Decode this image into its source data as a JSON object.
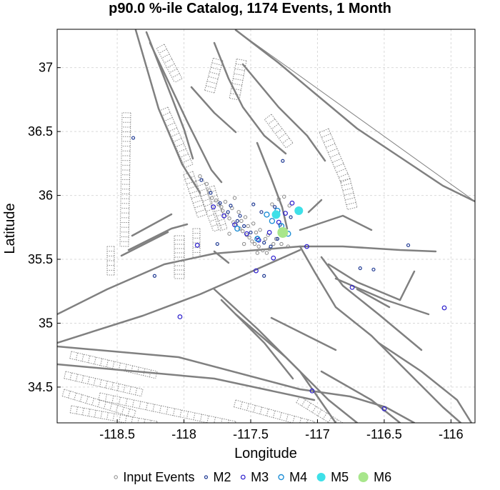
{
  "chart_data": {
    "type": "scatter",
    "title": "p90.0 %-ile Catalog, 1174 Events, 1 Month",
    "xlabel": "Longitude",
    "ylabel": "Latitude",
    "xlim": [
      -118.95,
      -115.82
    ],
    "ylim": [
      34.22,
      37.3
    ],
    "xticks": [
      -118.5,
      -118,
      -117.5,
      -117,
      -116.5,
      -116
    ],
    "xtick_labels": [
      "-118.5",
      "-118",
      "-117.5",
      "-117",
      "-116.5",
      "-116"
    ],
    "yticks": [
      34.5,
      35,
      35.5,
      36,
      36.5,
      37
    ],
    "ytick_labels": [
      "34.5",
      "35",
      "35.5",
      "36",
      "36.5",
      "37"
    ],
    "grid": true,
    "legend": {
      "placement": "bottom"
    },
    "colors": {
      "input": "#888888",
      "m2": "#1f3a93",
      "m3": "#2a1ccc",
      "m4": "#1f8fd6",
      "m5": "#3ee0e8",
      "m6": "#a8e68c",
      "fault": "#808080"
    },
    "series": [
      {
        "name": "Input Events",
        "x": [
          -117.88,
          -117.83,
          -117.79,
          -117.74,
          -117.71,
          -117.68,
          -117.66,
          -117.63,
          -117.61,
          -117.58,
          -117.56,
          -117.53,
          -117.51,
          -117.49,
          -117.47,
          -117.44,
          -117.41,
          -117.38,
          -117.36,
          -117.33,
          -117.69,
          -117.64,
          -117.59,
          -117.54,
          -117.48,
          -117.43,
          -117.37,
          -117.31,
          -117.27,
          -117.22,
          -117.81,
          -117.76,
          -117.72,
          -117.57,
          -117.52,
          -117.46,
          -117.39,
          -117.34,
          -117.29,
          -117.25,
          -117.21,
          -117.62,
          -117.66,
          -117.55,
          -117.45
        ],
        "y": [
          36.15,
          36.09,
          35.98,
          35.93,
          35.88,
          35.85,
          35.82,
          35.79,
          35.77,
          35.74,
          35.72,
          35.69,
          35.67,
          35.64,
          35.62,
          35.6,
          35.57,
          35.55,
          35.58,
          35.62,
          35.95,
          35.9,
          35.87,
          35.83,
          35.78,
          35.73,
          35.69,
          35.66,
          35.62,
          35.6,
          36.04,
          35.96,
          35.91,
          35.8,
          35.76,
          35.71,
          35.66,
          35.93,
          35.97,
          35.99,
          35.92,
          35.98,
          35.7,
          35.62,
          35.55
        ]
      },
      {
        "name": "M2",
        "x": [
          -117.87,
          -117.8,
          -117.73,
          -117.67,
          -117.6,
          -117.55,
          -117.5,
          -117.45,
          -117.4,
          -117.35,
          -117.3,
          -117.25,
          -117.2,
          -117.15,
          -117.65,
          -117.58,
          -117.48,
          -117.42,
          -117.32,
          -117.28,
          -116.68,
          -116.58,
          -116.32,
          -118.22,
          -118.38,
          -117.75,
          -117.4,
          -117.26
        ],
        "y": [
          36.12,
          36.02,
          35.94,
          35.87,
          35.8,
          35.76,
          35.71,
          35.67,
          35.63,
          35.6,
          35.66,
          35.72,
          35.83,
          35.88,
          35.92,
          35.84,
          35.93,
          35.87,
          35.91,
          35.77,
          35.43,
          35.42,
          35.61,
          35.37,
          36.45,
          35.62,
          35.37,
          36.27
        ]
      },
      {
        "name": "M3",
        "x": [
          -117.78,
          -117.7,
          -117.62,
          -117.53,
          -117.44,
          -117.36,
          -117.29,
          -117.24,
          -117.19,
          -117.33,
          -116.74,
          -116.5,
          -118.03,
          -117.04,
          -117.08,
          -116.05,
          -117.46,
          -117.9
        ],
        "y": [
          35.91,
          35.84,
          35.77,
          35.7,
          35.65,
          35.71,
          35.79,
          35.86,
          35.94,
          35.51,
          35.28,
          34.33,
          35.05,
          34.47,
          35.6,
          35.12,
          35.41,
          35.61
        ]
      },
      {
        "name": "M4",
        "x": [
          -117.6,
          -117.45,
          -117.38,
          -117.3,
          -117.22,
          -117.34,
          -117.27
        ],
        "y": [
          35.74,
          35.66,
          35.85,
          35.88,
          35.7,
          35.8,
          35.76
        ]
      },
      {
        "name": "M5",
        "x": [
          -117.31,
          -117.14
        ],
        "y": [
          35.85,
          35.88
        ]
      },
      {
        "name": "M6",
        "x": [
          -117.26
        ],
        "y": [
          35.71
        ]
      }
    ]
  }
}
